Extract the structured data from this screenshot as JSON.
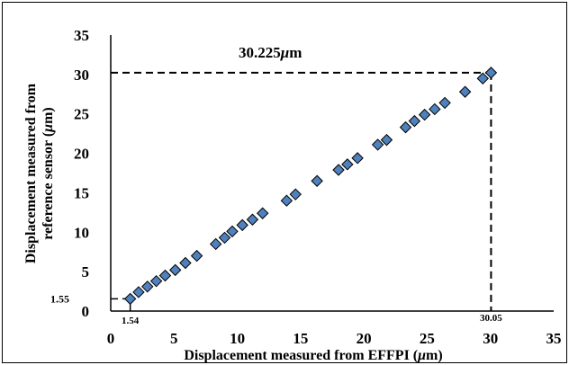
{
  "chart_data": {
    "type": "scatter",
    "xlabel_parts": [
      "Displacement measured from EFFPI (",
      "μ",
      "m",
      ")"
    ],
    "ylabel_line1": "Displacement measured from",
    "ylabel_line2_parts": [
      "reference sensor (",
      "μ",
      "m",
      ")"
    ],
    "xlim": [
      0,
      35
    ],
    "ylim": [
      0,
      35
    ],
    "x_ticks": [
      0,
      5,
      10,
      15,
      20,
      25,
      30,
      35
    ],
    "y_ticks": [
      0,
      5,
      10,
      15,
      20,
      25,
      30,
      35
    ],
    "grid": false,
    "marker": {
      "shape": "diamond",
      "fill": "#4f81bd",
      "stroke": "#000000"
    },
    "points": [
      {
        "x": 1.54,
        "y": 1.55
      },
      {
        "x": 2.2,
        "y": 2.4
      },
      {
        "x": 2.9,
        "y": 3.1
      },
      {
        "x": 3.6,
        "y": 3.8
      },
      {
        "x": 4.3,
        "y": 4.5
      },
      {
        "x": 5.1,
        "y": 5.2
      },
      {
        "x": 5.9,
        "y": 6.1
      },
      {
        "x": 6.8,
        "y": 7.0
      },
      {
        "x": 8.3,
        "y": 8.5
      },
      {
        "x": 9.0,
        "y": 9.3
      },
      {
        "x": 9.6,
        "y": 10.1
      },
      {
        "x": 10.4,
        "y": 10.9
      },
      {
        "x": 11.2,
        "y": 11.6
      },
      {
        "x": 12.0,
        "y": 12.4
      },
      {
        "x": 13.9,
        "y": 14.0
      },
      {
        "x": 14.6,
        "y": 14.8
      },
      {
        "x": 16.3,
        "y": 16.5
      },
      {
        "x": 18.0,
        "y": 17.9
      },
      {
        "x": 18.7,
        "y": 18.6
      },
      {
        "x": 19.5,
        "y": 19.4
      },
      {
        "x": 21.1,
        "y": 21.1
      },
      {
        "x": 21.8,
        "y": 21.7
      },
      {
        "x": 23.3,
        "y": 23.3
      },
      {
        "x": 24.0,
        "y": 24.1
      },
      {
        "x": 24.8,
        "y": 24.9
      },
      {
        "x": 25.6,
        "y": 25.6
      },
      {
        "x": 26.4,
        "y": 26.4
      },
      {
        "x": 28.0,
        "y": 27.8
      },
      {
        "x": 29.4,
        "y": 29.5
      },
      {
        "x": 30.05,
        "y": 30.225
      }
    ],
    "annotations": {
      "top_label_value": "30.225",
      "top_label_unit_mu": "μ",
      "top_label_unit_m": "m",
      "y_guide_value": 30.225,
      "x_guide_value": 30.05,
      "x_guide_label": "30.05",
      "low_x_value": 1.54,
      "low_x_label": "1.54",
      "low_y_value": 1.55,
      "low_y_label": "1.55"
    }
  }
}
